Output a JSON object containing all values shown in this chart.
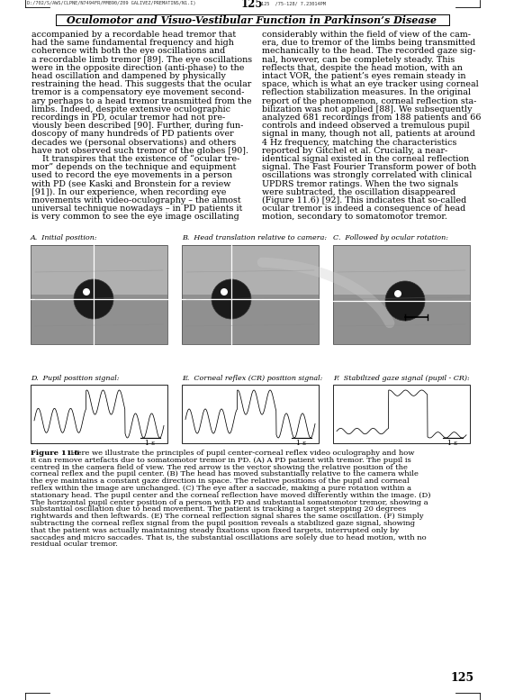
{
  "page_number": "125",
  "header_text": "Oculomotor and Visuo-Vestibular Function in Parkinson’s Disease",
  "header_filename": "D:/702/S/AWS/CLPNE/N7494FR/MM890/Z09 GALIVEZ/PREMATINS/N1.I)",
  "header_filename2": "125  /75-128/ 7.23014PM",
  "main_text_left": [
    "accompanied by a recordable head tremor that",
    "had the same fundamental frequency and high",
    "coherence with both the eye oscillations and",
    "a recordable limb tremor [89]. The eye oscillations",
    "were in the opposite direction (anti-phase) to the",
    "head oscillation and dampened by physically",
    "restraining the head. This suggests that the ocular",
    "tremor is a compensatory eye movement second-",
    "ary perhaps to a head tremor transmitted from the",
    "limbs. Indeed, despite extensive oculographic",
    "recordings in PD, ocular tremor had not pre-",
    "viously been described [90]. Further, during fun-",
    "doscopy of many hundreds of PD patients over",
    "decades we (personal observations) and others",
    "have not observed such tremor of the globes [90].",
    "    It transpires that the existence of “ocular tre-",
    "mor” depends on the technique and equipment",
    "used to record the eye movements in a person",
    "with PD (see Kaski and Bronstein for a review",
    "[91]). In our experience, when recording eye",
    "movements with video-oculography – the almost",
    "universal technique nowadays – in PD patients it",
    "is very common to see the eye image oscillating"
  ],
  "main_text_right": [
    "considerably within the field of view of the cam-",
    "era, due to tremor of the limbs being transmitted",
    "mechanically to the head. The recorded gaze sig-",
    "nal, however, can be completely steady. This",
    "reflects that, despite the head motion, with an",
    "intact VOR, the patient’s eyes remain steady in",
    "space, which is what an eye tracker using corneal",
    "reflection stabilization measures. In the original",
    "report of the phenomenon, corneal reflection sta-",
    "bilization was not applied [88]. We subsequently",
    "analyzed 681 recordings from 188 patients and 66",
    "controls and indeed observed a tremulous pupil",
    "signal in many, though not all, patients at around",
    "4 Hz frequency, matching the characteristics",
    "reported by Gitchel et al. Crucially, a near-",
    "identical signal existed in the corneal reflection",
    "signal. The Fast Fourier Transform power of both",
    "oscillations was strongly correlated with clinical",
    "UPDRS tremor ratings. When the two signals",
    "were subtracted, the oscillation disappeared",
    "(Figure 11.6) [92]. This indicates that so-called",
    "ocular tremor is indeed a consequence of head",
    "motion, secondary to somatomotor tremor."
  ],
  "subplot_labels_top": [
    "A.  Initial position:",
    "B.  Head translation relative to camera:",
    "C.  Followed by ocular rotation:"
  ],
  "subplot_labels_bottom": [
    "D.  Pupil position signal:",
    "E.  Corneal reflex (CR) position signal:",
    "F.  Stabilized gaze signal (pupil - CR):"
  ],
  "caption_bold": "Figure 11.6",
  "caption_rest": "  Here we illustrate the principles of pupil center-corneal reflex video oculography and how it can remove artefacts due to somatomotor tremor in PD. (A) A PD patient with tremor. The pupil is centred in the camera field of view. The red arrow is the vector showing the relative position of the corneal reflex and the pupil center. (B) The head has moved substantially relative to the camera while the eye maintains a constant gaze direction in space. The relative positions of the pupil and corneal reflex within the image are unchanged. (C) The eye after a saccade, making a pure rotation within a stationary head. The pupil center and the corneal reflection have moved differently within the image. (D) The horizontal pupil center position of a person with PD and substantial somatomotor tremor, showing a substantial oscillation due to head movement. The patient is tracking a target stepping 20 degrees rightwards and then leftwards. (E) The corneal reflection signal shares the same oscillation. (F) Simply subtracting the corneal reflex signal from the pupil position reveals a stabilized gaze signal, showing that the patient was actually maintaining steady fixations upon fixed targets, interrupted only by saccades and micro saccades. That is, the substantial oscillations are solely due to head motion, with no residual ocular tremor.",
  "bg_color": "#ffffff",
  "text_color": "#000000",
  "body_fontsize": 6.8,
  "caption_fontsize": 6.0,
  "header_fontsize": 8.0,
  "label_fontsize": 5.8
}
